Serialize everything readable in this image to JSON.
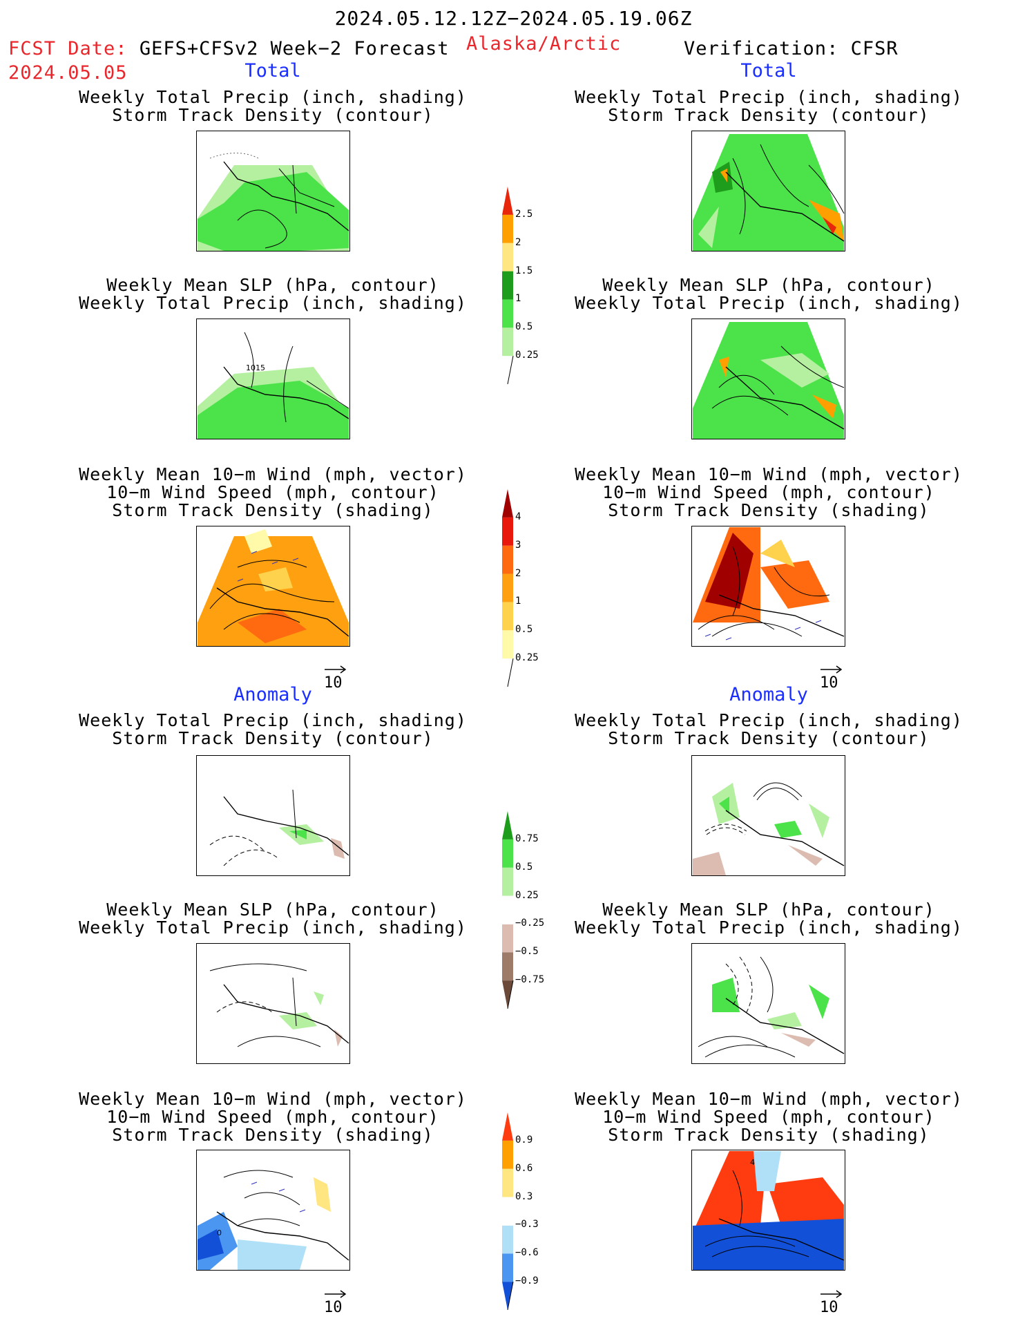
{
  "header": {
    "date_range": "2024.05.12.12Z−2024.05.19.06Z",
    "fcst_label": "FCST Date:",
    "fcst_model": "GEFS+CFSv2 Week−2 Forecast",
    "fcst_date": "2024.05.05",
    "region": "Alaska/Arctic",
    "verification": "Verification: CFSR"
  },
  "sections": {
    "total": "Total",
    "anomaly": "Anomaly"
  },
  "titles": {
    "precip_storm": [
      "Weekly Total Precip (inch, shading)",
      "Storm Track Density (contour)"
    ],
    "slp_precip": [
      "Weekly Mean SLP (hPa, contour)",
      "Weekly Total Precip (inch, shading)"
    ],
    "wind_storm": [
      "Weekly Mean 10−m Wind (mph, vector)",
      "10−m Wind Speed (mph, contour)",
      "Storm Track Density (shading)"
    ]
  },
  "map_labels": {
    "slp_forecast": "1015",
    "wind_anom_forecast": "0",
    "wind_anom_verif": "4"
  },
  "vector_ref": "10",
  "colorbars": {
    "precip_total": {
      "ticks": [
        "2.5",
        "2",
        "1.5",
        "1",
        "0.5",
        "0.25"
      ],
      "colors": [
        "#ffffff",
        "#b4f0a0",
        "#4ce34a",
        "#1e9c1c",
        "#ffe680",
        "#ffa000",
        "#e8260c"
      ]
    },
    "storm_total": {
      "ticks": [
        "4",
        "3",
        "2",
        "1",
        "0.5",
        "0.25"
      ],
      "colors": [
        "#ffffff",
        "#fffaaa",
        "#ffd24d",
        "#ffa010",
        "#ff6a10",
        "#e8180c",
        "#a00000"
      ]
    },
    "precip_anom": {
      "ticks": [
        "0.75",
        "0.5",
        "0.25",
        "−0.25",
        "−0.5",
        "−0.75"
      ],
      "colors": [
        "#6b4a3a",
        "#9e7a68",
        "#dcbcb0",
        "#ffffff",
        "#b4f0a0",
        "#4ce34a",
        "#1e9c1c"
      ]
    },
    "storm_anom": {
      "ticks": [
        "0.9",
        "0.6",
        "0.3",
        "−0.3",
        "−0.6",
        "−0.9"
      ],
      "colors": [
        "#1250d8",
        "#4a96f0",
        "#b0e0f8",
        "#ffffff",
        "#ffe680",
        "#ffa000",
        "#ff3c10"
      ]
    }
  }
}
